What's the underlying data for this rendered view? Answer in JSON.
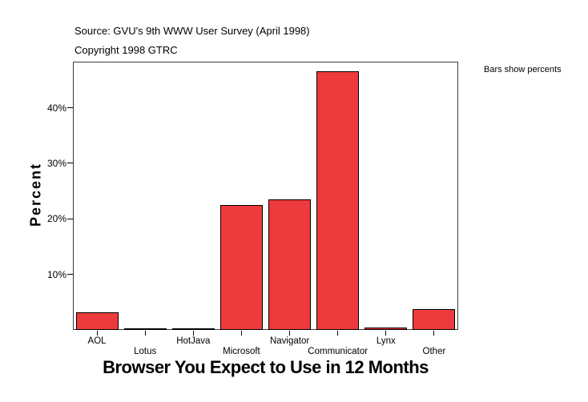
{
  "header": {
    "source_line": "Source: GVU's 9th WWW User Survey (April 1998)",
    "copyright_line": "Copyright 1998 GTRC"
  },
  "chart_data": {
    "type": "bar",
    "title": "",
    "xlabel": "Browser You Expect to Use in 12 Months",
    "ylabel": "Percent",
    "categories": [
      "AOL",
      "Lotus",
      "HotJava",
      "Microsoft",
      "Navigator",
      "Communicator",
      "Lynx",
      "Other"
    ],
    "values": [
      3.2,
      0.2,
      0.2,
      22.5,
      23.5,
      46.5,
      0.5,
      3.7
    ],
    "y_tick_labels": [
      "10%",
      "20%",
      "30%",
      "40%"
    ],
    "y_tick_values": [
      10,
      20,
      30,
      40
    ],
    "ylim": [
      0,
      48.3
    ],
    "grid": false,
    "legend_note": "Bars show percents",
    "legend_position": "outside-right",
    "bar_color": "#ee3a3c",
    "bar_border_color": "#000000",
    "frame_color": "#3c3c3c",
    "stagger_x_labels": true
  }
}
